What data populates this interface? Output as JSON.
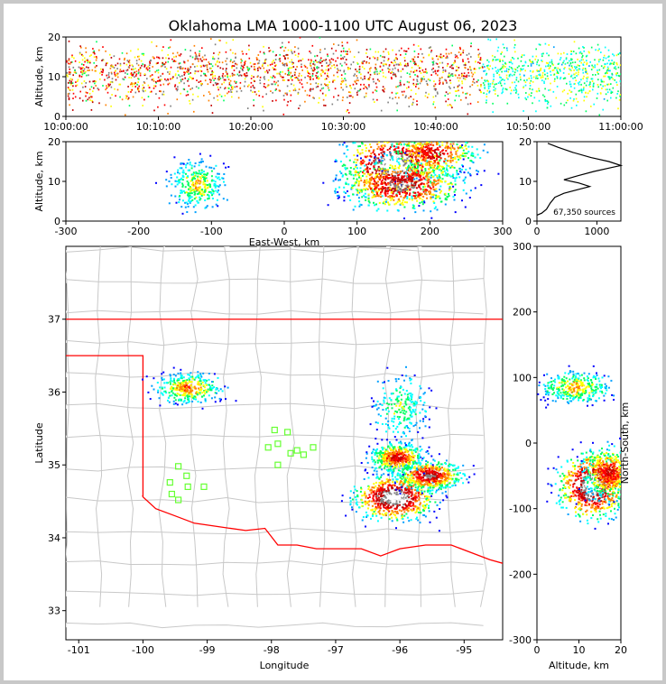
{
  "title": "Oklahoma LMA 1000-1100 UTC August 06, 2023",
  "chart_data": [
    {
      "panel": "altitude-time",
      "type": "heatmap",
      "xlabel": "",
      "ylabel": "Altitude, km",
      "x_tick_labels": [
        "10:00:00",
        "10:10:00",
        "10:20:00",
        "10:30:00",
        "10:40:00",
        "10:50:00",
        "11:00:00"
      ],
      "xlim_minutes": [
        0,
        60
      ],
      "ylim": [
        0,
        20
      ],
      "y_ticks": [
        0,
        10,
        20
      ]
    },
    {
      "panel": "east-west-altitude",
      "type": "heatmap",
      "xlabel": "East-West, km",
      "ylabel": "Altitude, km",
      "xlim": [
        -300,
        300
      ],
      "x_ticks": [
        -300,
        -200,
        -100,
        0,
        100,
        200,
        300
      ],
      "ylim": [
        0,
        20
      ],
      "y_ticks": [
        0,
        10,
        20
      ],
      "clusters": [
        {
          "x": -120,
          "z": 9,
          "sx": 18,
          "sz": 3,
          "strength": 0.45
        },
        {
          "x": 150,
          "z": 14,
          "sx": 35,
          "sz": 4,
          "strength": 1.0
        },
        {
          "x": 205,
          "z": 17,
          "sx": 30,
          "sz": 3,
          "strength": 0.7
        },
        {
          "x": 160,
          "z": 9,
          "sx": 40,
          "sz": 3,
          "strength": 0.85
        }
      ]
    },
    {
      "panel": "altitude-histogram",
      "type": "line",
      "xlim": [
        0,
        1400
      ],
      "x_ticks": [
        0,
        1000
      ],
      "ylim": [
        0,
        20
      ],
      "y_ticks": [
        0,
        10,
        20
      ],
      "sources_label": "67,350 sources",
      "points": [
        [
          0,
          1.5
        ],
        [
          80,
          2
        ],
        [
          160,
          3
        ],
        [
          220,
          4.5
        ],
        [
          300,
          6
        ],
        [
          450,
          7
        ],
        [
          700,
          8
        ],
        [
          880,
          8.7
        ],
        [
          700,
          9.6
        ],
        [
          450,
          10.4
        ],
        [
          700,
          11.5
        ],
        [
          950,
          12.5
        ],
        [
          1250,
          13.5
        ],
        [
          1400,
          14
        ],
        [
          1200,
          15
        ],
        [
          900,
          16
        ],
        [
          600,
          17.3
        ],
        [
          350,
          18.6
        ],
        [
          180,
          19.6
        ]
      ]
    },
    {
      "panel": "plan-view-map",
      "type": "scatter",
      "xlabel": "Longitude",
      "ylabel": "Latitude",
      "xlim": [
        -101.2,
        -94.4
      ],
      "x_ticks": [
        -101,
        -100,
        -99,
        -98,
        -97,
        -96,
        -95
      ],
      "ylim": [
        32.6,
        38.0
      ],
      "y_ticks": [
        33,
        34,
        35,
        36,
        37
      ],
      "state_border_color": "#ff0000",
      "county_line_color": "#c8c8c8",
      "station_color": "#66ff33",
      "stations": [
        [
          -99.45,
          34.98
        ],
        [
          -99.32,
          34.85
        ],
        [
          -99.58,
          34.76
        ],
        [
          -99.3,
          34.7
        ],
        [
          -99.55,
          34.6
        ],
        [
          -99.45,
          34.52
        ],
        [
          -99.05,
          34.7
        ],
        [
          -97.95,
          35.48
        ],
        [
          -97.75,
          35.45
        ],
        [
          -97.9,
          35.29
        ],
        [
          -98.05,
          35.24
        ],
        [
          -97.6,
          35.2
        ],
        [
          -97.7,
          35.16
        ],
        [
          -97.5,
          35.14
        ],
        [
          -97.35,
          35.24
        ],
        [
          -97.9,
          35.0
        ]
      ],
      "clusters": [
        {
          "lon": -99.3,
          "lat": 36.05,
          "slon": 0.25,
          "slat": 0.1,
          "strength": 0.55
        },
        {
          "lon": -96.1,
          "lat": 34.55,
          "slon": 0.3,
          "slat": 0.15,
          "strength": 1.0
        },
        {
          "lon": -95.55,
          "lat": 34.85,
          "slon": 0.25,
          "slat": 0.1,
          "strength": 0.8
        },
        {
          "lon": -96.05,
          "lat": 35.1,
          "slon": 0.2,
          "slat": 0.1,
          "strength": 0.7
        },
        {
          "lon": -96.0,
          "lat": 35.8,
          "slon": 0.2,
          "slat": 0.2,
          "strength": 0.35
        }
      ]
    },
    {
      "panel": "north-south-altitude",
      "type": "heatmap",
      "xlabel": "Altitude, km",
      "ylabel": "North-South, km",
      "xlim": [
        0,
        20
      ],
      "x_ticks": [
        0,
        10,
        20
      ],
      "ylim": [
        -300,
        300
      ],
      "y_ticks": [
        -300,
        -200,
        -100,
        0,
        100,
        200,
        300
      ],
      "clusters": [
        {
          "z": 9,
          "y": 85,
          "sz": 4,
          "sy": 12,
          "strength": 0.5
        },
        {
          "z": 13,
          "y": -65,
          "sz": 4,
          "sy": 25,
          "strength": 1.0
        },
        {
          "z": 17,
          "y": -45,
          "sz": 3,
          "sy": 20,
          "strength": 0.7
        }
      ]
    }
  ]
}
